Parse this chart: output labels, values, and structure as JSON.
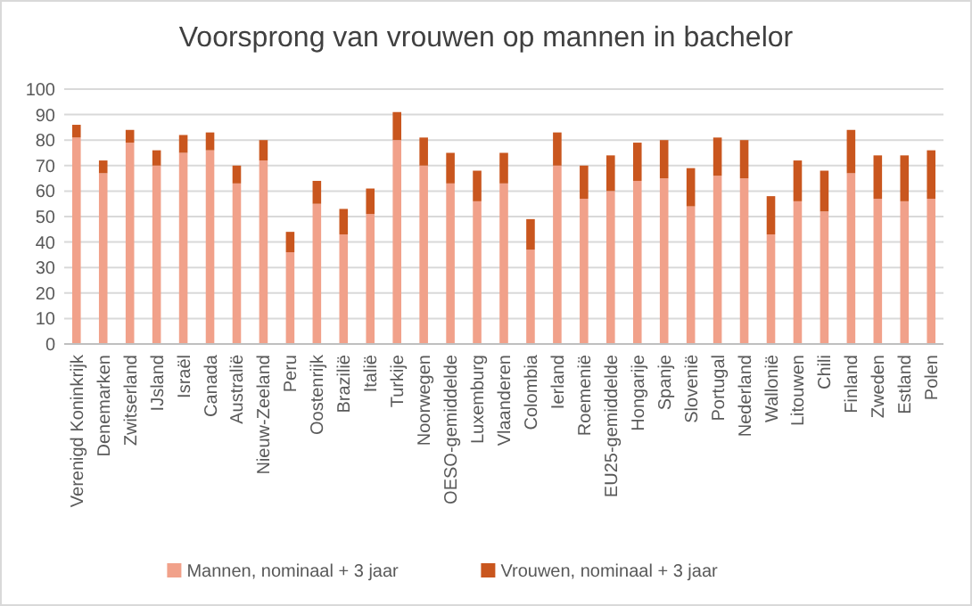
{
  "chart_data": {
    "type": "bar",
    "title": "Voorsprong van vrouwen op mannen in bachelor",
    "categories": [
      "Verenigd Koninkrijk",
      "Denemarken",
      "Zwitserland",
      "IJsland",
      "Israël",
      "Canada",
      "Australië",
      "Nieuw-Zeeland",
      "Peru",
      "Oostenrijk",
      "Brazilië",
      "Italië",
      "Turkije",
      "Noorwegen",
      "OESO-gemiddelde",
      "Luxemburg",
      "Vlaanderen",
      "Colombia",
      "Ierland",
      "Roemenië",
      "EU25-gemiddelde",
      "Hongarije",
      "Spanje",
      "Slovenië",
      "Portugal",
      "Nederland",
      "Wallonië",
      "Litouwen",
      "Chili",
      "Finland",
      "Zweden",
      "Estland",
      "Polen"
    ],
    "series": [
      {
        "name": "Mannen, nominaal + 3 jaar",
        "color": "#f1a18a",
        "values": [
          81,
          67,
          79,
          70,
          75,
          76,
          63,
          72,
          36,
          55,
          43,
          51,
          80,
          70,
          63,
          56,
          63,
          37,
          70,
          57,
          60,
          64,
          65,
          54,
          66,
          65,
          43,
          56,
          52,
          67,
          57,
          56,
          57
        ]
      },
      {
        "name": "Vrouwen, nominaal + 3 jaar",
        "color": "#c9561e",
        "values": [
          5,
          5,
          5,
          6,
          7,
          7,
          7,
          8,
          8,
          9,
          10,
          10,
          11,
          11,
          12,
          12,
          12,
          12,
          13,
          13,
          14,
          15,
          15,
          15,
          15,
          15,
          15,
          16,
          16,
          17,
          17,
          18,
          19
        ]
      }
    ],
    "stacked": true,
    "ylim": [
      0,
      100
    ],
    "yticks": [
      0,
      10,
      20,
      30,
      40,
      50,
      60,
      70,
      80,
      90,
      100
    ],
    "grid": "y",
    "legend": "bottom"
  }
}
